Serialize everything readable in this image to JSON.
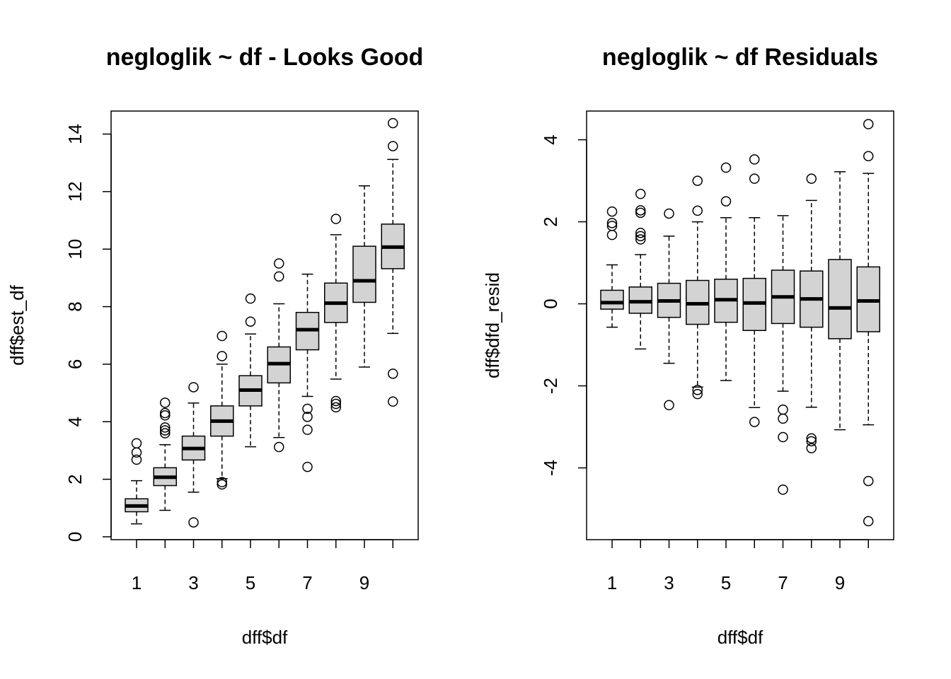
{
  "chart_data": [
    {
      "type": "boxplot",
      "title": "negloglik ~ df - Looks Good",
      "xlabel": "dff$df",
      "ylabel": "dff$est_df",
      "categories": [
        "1",
        "2",
        "3",
        "4",
        "5",
        "6",
        "7",
        "8",
        "9",
        "10"
      ],
      "x_tick_labels": [
        "1",
        "3",
        "5",
        "7",
        "9"
      ],
      "y_ticks": [
        0,
        2,
        4,
        6,
        8,
        10,
        12,
        14
      ],
      "ylim": [
        -0.1,
        14.8
      ],
      "boxes": [
        {
          "whisker_low": 0.45,
          "q1": 0.87,
          "median": 1.07,
          "q3": 1.32,
          "whisker_high": 1.95,
          "outliers": [
            2.68,
            2.93,
            3.25
          ]
        },
        {
          "whisker_low": 0.92,
          "q1": 1.78,
          "median": 2.07,
          "q3": 2.4,
          "whisker_high": 3.2,
          "outliers": [
            3.6,
            3.7,
            3.8,
            4.22,
            4.3,
            4.66
          ]
        },
        {
          "whisker_low": 1.55,
          "q1": 2.67,
          "median": 3.07,
          "q3": 3.5,
          "whisker_high": 4.65,
          "outliers": [
            0.5,
            5.2
          ]
        },
        {
          "whisker_low": 2.02,
          "q1": 3.5,
          "median": 4.02,
          "q3": 4.55,
          "whisker_high": 6.0,
          "outliers": [
            1.82,
            1.9,
            6.28,
            6.98
          ]
        },
        {
          "whisker_low": 3.13,
          "q1": 4.55,
          "median": 5.1,
          "q3": 5.6,
          "whisker_high": 7.05,
          "outliers": [
            7.48,
            8.28
          ]
        },
        {
          "whisker_low": 3.45,
          "q1": 5.35,
          "median": 6.02,
          "q3": 6.6,
          "whisker_high": 8.1,
          "outliers": [
            3.12,
            9.05,
            9.5
          ]
        },
        {
          "whisker_low": 4.88,
          "q1": 6.5,
          "median": 7.2,
          "q3": 7.8,
          "whisker_high": 9.13,
          "outliers": [
            2.43,
            3.72,
            4.17,
            4.45
          ]
        },
        {
          "whisker_low": 5.48,
          "q1": 7.45,
          "median": 8.12,
          "q3": 8.82,
          "whisker_high": 10.5,
          "outliers": [
            4.5,
            4.62,
            4.72,
            11.05
          ]
        },
        {
          "whisker_low": 5.9,
          "q1": 8.15,
          "median": 8.9,
          "q3": 10.1,
          "whisker_high": 12.2,
          "outliers": []
        },
        {
          "whisker_low": 7.07,
          "q1": 9.32,
          "median": 10.07,
          "q3": 10.87,
          "whisker_high": 13.12,
          "outliers": [
            4.7,
            5.67,
            13.58,
            14.38
          ]
        }
      ]
    },
    {
      "type": "boxplot",
      "title": "negloglik ~ df Residuals",
      "xlabel": "dff$df",
      "ylabel": "dff$dfd_resid",
      "categories": [
        "1",
        "2",
        "3",
        "4",
        "5",
        "6",
        "7",
        "8",
        "9",
        "10"
      ],
      "x_tick_labels": [
        "1",
        "3",
        "5",
        "7",
        "9"
      ],
      "y_ticks": [
        -4,
        -2,
        0,
        2,
        4
      ],
      "ylim": [
        -5.75,
        4.7
      ],
      "boxes": [
        {
          "whisker_low": -0.57,
          "q1": -0.13,
          "median": 0.03,
          "q3": 0.33,
          "whisker_high": 0.95,
          "outliers": [
            1.68,
            1.9,
            1.97,
            2.25
          ]
        },
        {
          "whisker_low": -1.1,
          "q1": -0.23,
          "median": 0.05,
          "q3": 0.41,
          "whisker_high": 1.2,
          "outliers": [
            1.57,
            1.65,
            1.73,
            2.22,
            2.28,
            2.68
          ]
        },
        {
          "whisker_low": -1.45,
          "q1": -0.33,
          "median": 0.07,
          "q3": 0.5,
          "whisker_high": 1.65,
          "outliers": [
            -2.47,
            2.2
          ]
        },
        {
          "whisker_low": -2.03,
          "q1": -0.5,
          "median": 0.0,
          "q3": 0.57,
          "whisker_high": 2.0,
          "outliers": [
            -2.1,
            -2.2,
            2.27,
            3.0
          ]
        },
        {
          "whisker_low": -1.87,
          "q1": -0.45,
          "median": 0.1,
          "q3": 0.6,
          "whisker_high": 2.1,
          "outliers": [
            2.5,
            3.32
          ]
        },
        {
          "whisker_low": -2.53,
          "q1": -0.65,
          "median": 0.02,
          "q3": 0.62,
          "whisker_high": 2.1,
          "outliers": [
            -2.88,
            3.05,
            3.52
          ]
        },
        {
          "whisker_low": -2.13,
          "q1": -0.48,
          "median": 0.17,
          "q3": 0.82,
          "whisker_high": 2.15,
          "outliers": [
            -2.58,
            -2.8,
            -3.25,
            -4.53
          ]
        },
        {
          "whisker_low": -2.52,
          "q1": -0.57,
          "median": 0.12,
          "q3": 0.8,
          "whisker_high": 2.52,
          "outliers": [
            -3.28,
            -3.35,
            -3.52,
            3.05
          ]
        },
        {
          "whisker_low": -3.07,
          "q1": -0.85,
          "median": -0.1,
          "q3": 1.08,
          "whisker_high": 3.22,
          "outliers": []
        },
        {
          "whisker_low": -2.95,
          "q1": -0.68,
          "median": 0.07,
          "q3": 0.9,
          "whisker_high": 3.18,
          "outliers": [
            -4.32,
            -5.3,
            3.6,
            4.38
          ]
        }
      ]
    }
  ]
}
